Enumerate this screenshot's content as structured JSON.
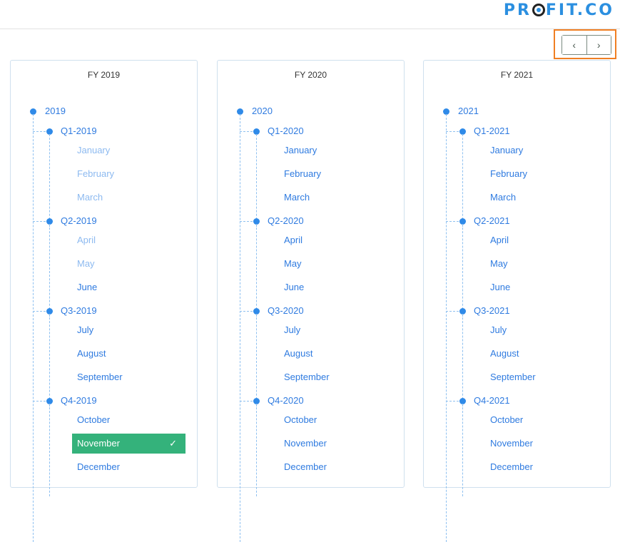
{
  "logo": "PROFIT.CO",
  "nav": {
    "prev": "‹",
    "next": "›"
  },
  "colors": {
    "accent": "#2f7be0",
    "selected": "#34b27b",
    "highlight": "#f07f23"
  },
  "cards": [
    {
      "title": "FY 2019",
      "year": "2019",
      "quarters": [
        {
          "label": "Q1-2019",
          "months": [
            {
              "label": "January",
              "disabled": true
            },
            {
              "label": "February",
              "disabled": true
            },
            {
              "label": "March",
              "disabled": true
            }
          ]
        },
        {
          "label": "Q2-2019",
          "months": [
            {
              "label": "April",
              "disabled": true
            },
            {
              "label": "May",
              "disabled": true
            },
            {
              "label": "June"
            }
          ]
        },
        {
          "label": "Q3-2019",
          "months": [
            {
              "label": "July"
            },
            {
              "label": "August"
            },
            {
              "label": "September"
            }
          ]
        },
        {
          "label": "Q4-2019",
          "months": [
            {
              "label": "October"
            },
            {
              "label": "November",
              "selected": true
            },
            {
              "label": "December"
            }
          ]
        }
      ]
    },
    {
      "title": "FY 2020",
      "year": "2020",
      "quarters": [
        {
          "label": "Q1-2020",
          "months": [
            {
              "label": "January"
            },
            {
              "label": "February"
            },
            {
              "label": "March"
            }
          ]
        },
        {
          "label": "Q2-2020",
          "months": [
            {
              "label": "April"
            },
            {
              "label": "May"
            },
            {
              "label": "June"
            }
          ]
        },
        {
          "label": "Q3-2020",
          "months": [
            {
              "label": "July"
            },
            {
              "label": "August"
            },
            {
              "label": "September"
            }
          ]
        },
        {
          "label": "Q4-2020",
          "months": [
            {
              "label": "October"
            },
            {
              "label": "November"
            },
            {
              "label": "December"
            }
          ]
        }
      ]
    },
    {
      "title": "FY 2021",
      "year": "2021",
      "quarters": [
        {
          "label": "Q1-2021",
          "months": [
            {
              "label": "January"
            },
            {
              "label": "February"
            },
            {
              "label": "March"
            }
          ]
        },
        {
          "label": "Q2-2021",
          "months": [
            {
              "label": "April"
            },
            {
              "label": "May"
            },
            {
              "label": "June"
            }
          ]
        },
        {
          "label": "Q3-2021",
          "months": [
            {
              "label": "July"
            },
            {
              "label": "August"
            },
            {
              "label": "September"
            }
          ]
        },
        {
          "label": "Q4-2021",
          "months": [
            {
              "label": "October"
            },
            {
              "label": "November"
            },
            {
              "label": "December"
            }
          ]
        }
      ]
    }
  ]
}
